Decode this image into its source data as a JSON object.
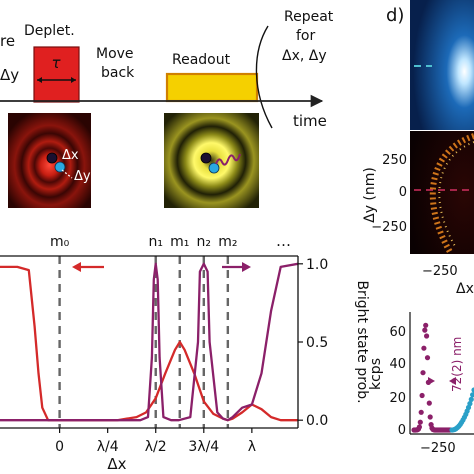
{
  "timeline": {
    "cropped_left_top": "re",
    "cropped_left_bottom": "Δy",
    "depletion_label": "Deplet.",
    "tau": "τ",
    "move_back": [
      "Move",
      "back"
    ],
    "readout_label": "Readout",
    "repeat": [
      "Repeat",
      "for",
      "Δx, Δy"
    ],
    "time_label": "time",
    "depletion_color": "#e02020",
    "readout_color": "#f5d000"
  },
  "insets": {
    "dx_label": "Δx",
    "dy_label": "Δy"
  },
  "panel_d": {
    "label": "d)",
    "scan_ylabel": "Δy (nm)",
    "scan_yticks": [
      "250",
      "0",
      "−250"
    ],
    "scan_xtick": "−250",
    "scan_xlabel_fragment": "Δx",
    "lower_ylabel": "kcps",
    "lower_yticks": [
      "60",
      "40",
      "20",
      "0"
    ],
    "lower_xtick": "−250",
    "annotation": "72(2) nm"
  },
  "chart_data": {
    "type": "line",
    "xlabel": "Δx",
    "ylabel": "Bright state prob.",
    "xtick_labels": [
      "0",
      "λ/4",
      "λ/2",
      "3λ/4",
      "λ"
    ],
    "xticks": [
      0,
      0.25,
      0.5,
      0.75,
      1.0
    ],
    "xlim": [
      -0.31,
      1.24
    ],
    "ytick_labels": [
      "0.0",
      "0.5",
      "1.0"
    ],
    "yticks": [
      0,
      0.5,
      1.0
    ],
    "ylim": [
      -0.05,
      1.05
    ],
    "minima_labels": [
      "m₀",
      "m₁",
      "m₂"
    ],
    "minima_x": [
      0,
      0.625,
      0.875
    ],
    "maxima_labels": [
      "n₁",
      "n₂"
    ],
    "maxima_x": [
      0.5,
      0.75
    ],
    "ellipsis": "…",
    "series": [
      {
        "color": "#d42a2a",
        "x": [
          -0.31,
          -0.22,
          -0.16,
          -0.13,
          -0.11,
          -0.09,
          -0.06,
          0.0,
          0.3,
          0.4,
          0.45,
          0.5,
          0.55,
          0.6,
          0.625,
          0.65,
          0.7,
          0.75,
          0.8,
          0.85,
          0.875,
          0.9,
          0.95,
          1.0,
          1.05,
          1.1,
          1.15,
          1.24
        ],
        "y": [
          0.98,
          0.98,
          0.96,
          0.6,
          0.3,
          0.08,
          0.0,
          0.0,
          0.0,
          0.02,
          0.05,
          0.14,
          0.3,
          0.45,
          0.5,
          0.45,
          0.3,
          0.12,
          0.04,
          0.01,
          0.0,
          0.01,
          0.05,
          0.1,
          0.07,
          0.02,
          0.0,
          0.0
        ]
      },
      {
        "color": "#8b2069",
        "x": [
          -0.31,
          0.42,
          0.46,
          0.48,
          0.49,
          0.5,
          0.51,
          0.52,
          0.54,
          0.58,
          0.62,
          0.68,
          0.72,
          0.73,
          0.75,
          0.77,
          0.78,
          0.82,
          0.85,
          0.875,
          0.9,
          0.95,
          1.0,
          1.05,
          1.1,
          1.15,
          1.24
        ],
        "y": [
          0.0,
          0.0,
          0.02,
          0.4,
          0.9,
          1.0,
          0.9,
          0.4,
          0.02,
          0.0,
          0.0,
          0.02,
          0.5,
          0.95,
          1.0,
          0.95,
          0.5,
          0.05,
          0.01,
          0.0,
          0.02,
          0.08,
          0.1,
          0.3,
          0.7,
          0.98,
          1.0
        ]
      }
    ]
  }
}
